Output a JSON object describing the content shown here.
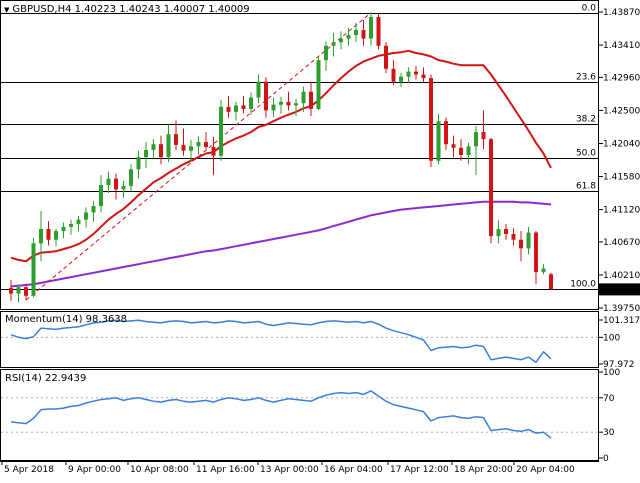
{
  "header": {
    "symbol": "GBPUSD,H4",
    "open": "1.40223",
    "high": "1.40243",
    "low": "1.40007",
    "close": "1.40009"
  },
  "colors": {
    "bull": "#2e9e2e",
    "bear": "#d11414",
    "ma_fast": "#d11414",
    "ma_slow": "#8a2bd1",
    "oscillator": "#3b7fd9",
    "fibo": "#000000",
    "trend": "#d11414",
    "price_tag_bg": "#000000"
  },
  "price_axis": {
    "ticks": [
      "1.43870",
      "1.43410",
      "1.42960",
      "1.42500",
      "1.42040",
      "1.41580",
      "1.41120",
      "1.40670",
      "1.40210",
      "1.39750"
    ],
    "current_price": "1.40009"
  },
  "fibo_levels": [
    {
      "label": "0.0"
    },
    {
      "label": "23.6"
    },
    {
      "label": "38.2"
    },
    {
      "label": "50.0"
    },
    {
      "label": "61.8"
    },
    {
      "label": "100.0"
    }
  ],
  "momentum": {
    "title": "Momentum(14) 98.3638",
    "ticks": [
      "101.3175",
      "100",
      "97.972"
    ]
  },
  "rsi": {
    "title": "RSI(14) 22.9439",
    "ticks": [
      "100",
      "70",
      "30",
      "0"
    ]
  },
  "time_axis": [
    "5 Apr 2018",
    "9 Apr 00:00",
    "10 Apr 08:00",
    "11 Apr 16:00",
    "13 Apr 00:00",
    "16 Apr 04:00",
    "17 Apr 12:00",
    "18 Apr 20:00",
    "20 Apr 04:00"
  ],
  "chart_data": {
    "type": "candlestick",
    "symbol": "GBPUSD",
    "timeframe": "H4",
    "ylim": [
      1.3975,
      1.4387
    ],
    "candles": [
      [
        1.4003,
        1.4014,
        1.3985,
        1.3995
      ],
      [
        1.3995,
        1.4008,
        1.3983,
        1.4004
      ],
      [
        1.4004,
        1.4009,
        1.3986,
        1.3992
      ],
      [
        1.3992,
        1.4072,
        1.399,
        1.4065
      ],
      [
        1.4065,
        1.411,
        1.404,
        1.4085
      ],
      [
        1.4085,
        1.4096,
        1.4062,
        1.407
      ],
      [
        1.407,
        1.4085,
        1.4061,
        1.4082
      ],
      [
        1.4082,
        1.4094,
        1.4072,
        1.4088
      ],
      [
        1.4088,
        1.4098,
        1.4077,
        1.4092
      ],
      [
        1.4092,
        1.4103,
        1.4081,
        1.4098
      ],
      [
        1.4098,
        1.4115,
        1.4087,
        1.4108
      ],
      [
        1.4108,
        1.4124,
        1.4095,
        1.4117
      ],
      [
        1.4117,
        1.416,
        1.4108,
        1.4146
      ],
      [
        1.4146,
        1.4165,
        1.4135,
        1.4155
      ],
      [
        1.4155,
        1.4162,
        1.4126,
        1.414
      ],
      [
        1.414,
        1.4152,
        1.4128,
        1.4145
      ],
      [
        1.4145,
        1.4175,
        1.4137,
        1.4168
      ],
      [
        1.4168,
        1.4194,
        1.4155,
        1.4185
      ],
      [
        1.4185,
        1.4206,
        1.417,
        1.4195
      ],
      [
        1.4195,
        1.421,
        1.4183,
        1.4203
      ],
      [
        1.4203,
        1.4215,
        1.4175,
        1.4185
      ],
      [
        1.4185,
        1.423,
        1.4178,
        1.4217
      ],
      [
        1.4217,
        1.4236,
        1.4195,
        1.4202
      ],
      [
        1.4202,
        1.4225,
        1.4187,
        1.4194
      ],
      [
        1.4194,
        1.4209,
        1.4178,
        1.42
      ],
      [
        1.42,
        1.4214,
        1.4189,
        1.4206
      ],
      [
        1.4206,
        1.422,
        1.4196,
        1.4199
      ],
      [
        1.4199,
        1.4213,
        1.416,
        1.4187
      ],
      [
        1.4187,
        1.4265,
        1.418,
        1.4255
      ],
      [
        1.4255,
        1.427,
        1.424,
        1.4248
      ],
      [
        1.4248,
        1.4262,
        1.4236,
        1.4257
      ],
      [
        1.4257,
        1.427,
        1.4246,
        1.4252
      ],
      [
        1.4252,
        1.4275,
        1.4244,
        1.4268
      ],
      [
        1.4268,
        1.43,
        1.426,
        1.429
      ],
      [
        1.429,
        1.4296,
        1.424,
        1.425
      ],
      [
        1.425,
        1.4268,
        1.4241,
        1.4258
      ],
      [
        1.4258,
        1.4269,
        1.4245,
        1.4262
      ],
      [
        1.4262,
        1.4276,
        1.425,
        1.4257
      ],
      [
        1.4257,
        1.4266,
        1.4242,
        1.426
      ],
      [
        1.426,
        1.4283,
        1.4248,
        1.4276
      ],
      [
        1.4276,
        1.429,
        1.4242,
        1.4252
      ],
      [
        1.4252,
        1.4325,
        1.425,
        1.432
      ],
      [
        1.432,
        1.4346,
        1.4305,
        1.434
      ],
      [
        1.434,
        1.4358,
        1.4325,
        1.4345
      ],
      [
        1.4345,
        1.436,
        1.4335,
        1.435
      ],
      [
        1.435,
        1.4365,
        1.434,
        1.4355
      ],
      [
        1.4355,
        1.4372,
        1.4345,
        1.4362
      ],
      [
        1.4362,
        1.4376,
        1.434,
        1.435
      ],
      [
        1.435,
        1.4386,
        1.434,
        1.438
      ],
      [
        1.438,
        1.4385,
        1.4335,
        1.434
      ],
      [
        1.434,
        1.4345,
        1.4302,
        1.4308
      ],
      [
        1.4308,
        1.432,
        1.4285,
        1.429
      ],
      [
        1.429,
        1.4302,
        1.4283,
        1.4297
      ],
      [
        1.4297,
        1.431,
        1.4288,
        1.4304
      ],
      [
        1.4304,
        1.4312,
        1.4293,
        1.43
      ],
      [
        1.43,
        1.431,
        1.4289,
        1.4295
      ],
      [
        1.4295,
        1.43,
        1.4171,
        1.418
      ],
      [
        1.418,
        1.4245,
        1.4175,
        1.4235
      ],
      [
        1.4235,
        1.424,
        1.4195,
        1.4203
      ],
      [
        1.4203,
        1.4215,
        1.4185,
        1.4198
      ],
      [
        1.4198,
        1.421,
        1.418,
        1.4188
      ],
      [
        1.4188,
        1.4205,
        1.4175,
        1.42
      ],
      [
        1.42,
        1.4228,
        1.416,
        1.422
      ],
      [
        1.422,
        1.425,
        1.4196,
        1.421
      ],
      [
        1.421,
        1.4212,
        1.4065,
        1.4075
      ],
      [
        1.4075,
        1.4097,
        1.4065,
        1.4085
      ],
      [
        1.4085,
        1.4092,
        1.407,
        1.4078
      ],
      [
        1.4078,
        1.4086,
        1.4062,
        1.407
      ],
      [
        1.407,
        1.4082,
        1.404,
        1.4058
      ],
      [
        1.4058,
        1.4088,
        1.405,
        1.408
      ],
      [
        1.408,
        1.4082,
        1.4008,
        1.4025
      ],
      [
        1.4025,
        1.4036,
        1.4022,
        1.403
      ],
      [
        1.4022,
        1.4024,
        1.4001,
        1.4001
      ]
    ],
    "ma_fast": [
      1.4045,
      1.4042,
      1.404,
      1.4048,
      1.4052,
      1.4053,
      1.4054,
      1.4057,
      1.406,
      1.4064,
      1.407,
      1.4078,
      1.4088,
      1.4098,
      1.4106,
      1.4113,
      1.4122,
      1.4132,
      1.4141,
      1.415,
      1.4156,
      1.4163,
      1.4169,
      1.4175,
      1.418,
      1.4185,
      1.419,
      1.4192,
      1.42,
      1.4206,
      1.4211,
      1.4215,
      1.422,
      1.4227,
      1.423,
      1.4235,
      1.424,
      1.4244,
      1.4248,
      1.4253,
      1.4256,
      1.4264,
      1.4274,
      1.4285,
      1.4295,
      1.4304,
      1.4312,
      1.4318,
      1.4322,
      1.4326,
      1.4328,
      1.433,
      1.4331,
      1.4333,
      1.433,
      1.4328,
      1.4325,
      1.432,
      1.4318,
      1.4315,
      1.4313,
      1.4313,
      1.4313,
      1.4313,
      1.43,
      1.4285,
      1.427,
      1.4254,
      1.4238,
      1.4222,
      1.4205,
      1.419,
      1.417
    ],
    "ma_slow": [
      1.4005,
      1.4006,
      1.4007,
      1.4008,
      1.401,
      1.4012,
      1.4014,
      1.4016,
      1.4018,
      1.402,
      1.4022,
      1.4024,
      1.4026,
      1.4028,
      1.403,
      1.4032,
      1.4034,
      1.4036,
      1.4038,
      1.404,
      1.4042,
      1.4044,
      1.4046,
      1.4048,
      1.405,
      1.4052,
      1.4054,
      1.4055,
      1.4057,
      1.4059,
      1.4061,
      1.4063,
      1.4065,
      1.4067,
      1.4069,
      1.4071,
      1.4073,
      1.4075,
      1.4077,
      1.4079,
      1.4081,
      1.4083,
      1.4086,
      1.4089,
      1.4092,
      1.4095,
      1.4098,
      1.4101,
      1.4104,
      1.4106,
      1.4108,
      1.411,
      1.4112,
      1.4113,
      1.4114,
      1.4115,
      1.4116,
      1.4117,
      1.4118,
      1.4119,
      1.412,
      1.4121,
      1.4122,
      1.4123,
      1.4123,
      1.4123,
      1.4123,
      1.4123,
      1.4122,
      1.4122,
      1.4121,
      1.412,
      1.4119
    ],
    "momentum": [
      100.2,
      100.0,
      99.9,
      100.05,
      100.7,
      100.65,
      100.6,
      100.7,
      100.75,
      100.8,
      100.95,
      101.1,
      101.15,
      101.25,
      101.3,
      101.2,
      101.25,
      101.3,
      101.2,
      101.15,
      101.1,
      101.2,
      101.25,
      101.2,
      101.1,
      101.15,
      101.2,
      101.1,
      101.15,
      101.25,
      101.2,
      101.1,
      101.15,
      101.2,
      101.0,
      100.9,
      101.0,
      101.1,
      101.05,
      101.0,
      100.95,
      101.1,
      101.2,
      101.25,
      101.2,
      101.15,
      101.2,
      101.1,
      101.2,
      101.0,
      100.7,
      100.5,
      100.35,
      100.2,
      100.0,
      99.8,
      99.0,
      99.2,
      99.25,
      99.3,
      99.2,
      99.25,
      99.4,
      99.3,
      98.3,
      98.4,
      98.5,
      98.4,
      98.3,
      98.5,
      98.1,
      98.9,
      98.36
    ],
    "rsi": [
      42,
      41,
      40,
      46,
      56,
      57,
      57,
      58,
      60,
      61,
      64,
      66,
      68,
      69,
      70,
      67,
      69,
      70,
      68,
      66,
      65,
      67,
      68,
      66,
      65,
      66,
      67,
      65,
      68,
      70,
      69,
      67,
      68,
      70,
      67,
      65,
      67,
      69,
      68,
      67,
      66,
      70,
      73,
      75,
      76,
      75,
      76,
      74,
      78,
      72,
      66,
      62,
      60,
      58,
      56,
      54,
      43,
      47,
      48,
      49,
      47,
      46,
      48,
      47,
      32,
      33,
      34,
      32,
      31,
      33,
      29,
      30,
      23
    ]
  }
}
